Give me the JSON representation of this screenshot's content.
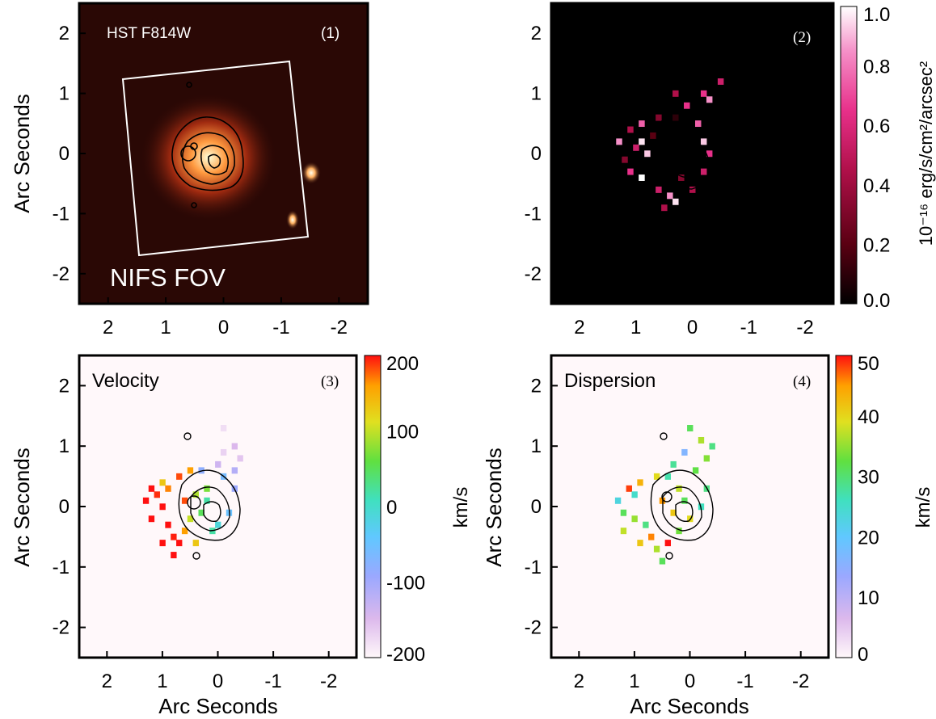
{
  "chart_data": [
    {
      "type": "heatmap",
      "panel_label": "(1)",
      "image_label": "HST F814W",
      "overlay_label": "NIFS FOV",
      "xlabel": "",
      "ylabel": "Arc Seconds",
      "xticks": [
        "2",
        "1",
        "0",
        "-1",
        "-2"
      ],
      "yticks": [
        "2",
        "1",
        "0",
        "-1",
        "-2"
      ],
      "xlim": [
        2.5,
        -2.5
      ],
      "ylim": [
        -2.5,
        2.5
      ],
      "colormap": "red-temperature",
      "background": "#2a0805",
      "sources": [
        {
          "x": -1.6,
          "y": 0.0
        },
        {
          "x": -1.25,
          "y": -1.05
        }
      ],
      "fov_box": [
        [
          1.75,
          1.35
        ],
        [
          -1.3,
          1.7
        ],
        [
          -1.55,
          -1.4
        ],
        [
          1.45,
          -1.65
        ]
      ]
    },
    {
      "type": "heatmap",
      "panel_label": "(2)",
      "xlabel": "",
      "ylabel": "",
      "xticks": [
        "2",
        "1",
        "0",
        "-1",
        "-2"
      ],
      "yticks": [
        "2",
        "1",
        "0",
        "-1",
        "-2"
      ],
      "xlim": [
        2.5,
        -2.5
      ],
      "ylim": [
        -2.5,
        2.5
      ],
      "colorbar": {
        "label": "10⁻¹⁶ erg/s/cm²/arcsec²",
        "ticks": [
          "0.0",
          "0.2",
          "0.4",
          "0.6",
          "0.8",
          "1.0"
        ],
        "range": [
          0.0,
          1.0
        ],
        "colors": [
          "#000000",
          "#5a0012",
          "#b0104a",
          "#e8308a",
          "#f590c8",
          "#ffffff"
        ]
      }
    },
    {
      "type": "heatmap",
      "panel_label": "(3)",
      "title": "Velocity",
      "xlabel": "Arc Seconds",
      "ylabel": "Arc Seconds",
      "xticks": [
        "2",
        "1",
        "0",
        "-1",
        "-2"
      ],
      "yticks": [
        "2",
        "1",
        "0",
        "-1",
        "-2"
      ],
      "xlim": [
        2.5,
        -2.5
      ],
      "ylim": [
        -2.5,
        2.5
      ],
      "colorbar": {
        "label": "km/s",
        "ticks": [
          "-200",
          "-100",
          "0",
          "100",
          "200"
        ],
        "range": [
          -200,
          200
        ],
        "colors": [
          "#fff8fa",
          "#dcb8ec",
          "#9aa8ff",
          "#60c8ff",
          "#40e0c0",
          "#60e040",
          "#e0e020",
          "#ffa000",
          "#ff1010"
        ]
      }
    },
    {
      "type": "heatmap",
      "panel_label": "(4)",
      "title": "Dispersion",
      "xlabel": "Arc Seconds",
      "ylabel": "Arc Seconds",
      "xticks": [
        "2",
        "1",
        "0",
        "-1",
        "-2"
      ],
      "yticks": [
        "2",
        "1",
        "0",
        "-1",
        "-2"
      ],
      "xlim": [
        2.5,
        -2.5
      ],
      "ylim": [
        -2.5,
        2.5
      ],
      "colorbar": {
        "label": "km/s",
        "ticks": [
          "0",
          "10",
          "20",
          "30",
          "40",
          "50"
        ],
        "range": [
          0,
          50
        ],
        "colors": [
          "#fff8fa",
          "#dcb8ec",
          "#9aa8ff",
          "#60c8ff",
          "#40e0c0",
          "#60e040",
          "#e0e020",
          "#ffa000",
          "#ff1010"
        ]
      }
    }
  ],
  "emission_map": {
    "pixel_size_arcsec": 0.1,
    "cells": [
      [
        -0.5,
        1.2,
        0.5
      ],
      [
        -0.2,
        1.0,
        0.6
      ],
      [
        -0.3,
        0.9,
        0.8
      ],
      [
        0.3,
        1.0,
        0.4
      ],
      [
        0.1,
        0.8,
        0.6
      ],
      [
        0.6,
        0.6,
        0.3
      ],
      [
        0.9,
        0.5,
        0.7
      ],
      [
        0.7,
        0.3,
        0.2
      ],
      [
        1.1,
        0.4,
        0.4
      ],
      [
        1.3,
        0.2,
        0.8
      ],
      [
        1.0,
        0.1,
        0.5
      ],
      [
        0.8,
        0.0,
        0.9
      ],
      [
        1.2,
        -0.1,
        0.3
      ],
      [
        1.1,
        -0.3,
        0.6
      ],
      [
        0.9,
        -0.4,
        1.0
      ],
      [
        0.6,
        -0.6,
        0.5
      ],
      [
        0.4,
        -0.7,
        0.8
      ],
      [
        0.2,
        -0.4,
        0.3
      ],
      [
        0.3,
        -0.8,
        0.95
      ],
      [
        0.5,
        -0.9,
        0.4
      ],
      [
        0.7,
        -0.3,
        0.0
      ],
      [
        0.5,
        0.5,
        0.0
      ],
      [
        0.3,
        0.6,
        0.1
      ],
      [
        -0.1,
        0.5,
        0.7
      ],
      [
        -0.2,
        0.2,
        0.9
      ],
      [
        -0.3,
        0.0,
        0.6
      ],
      [
        -0.2,
        -0.3,
        0.5
      ],
      [
        0.0,
        -0.6,
        0.4
      ],
      [
        1.3,
        0.0,
        0.0
      ],
      [
        0.9,
        0.2,
        0.95
      ]
    ]
  },
  "velocity_map": {
    "cells": [
      [
        -0.1,
        1.3,
        -180
      ],
      [
        -0.3,
        1.0,
        -150
      ],
      [
        -0.4,
        0.8,
        -160
      ],
      [
        -0.1,
        0.9,
        -170
      ],
      [
        -0.3,
        0.6,
        -120
      ],
      [
        0.0,
        0.7,
        -140
      ],
      [
        0.3,
        0.6,
        -90
      ],
      [
        0.5,
        0.6,
        150
      ],
      [
        0.7,
        0.5,
        180
      ],
      [
        1.0,
        0.4,
        120
      ],
      [
        1.2,
        0.3,
        200
      ],
      [
        1.3,
        0.1,
        200
      ],
      [
        1.1,
        0.2,
        190
      ],
      [
        0.9,
        0.3,
        160
      ],
      [
        1.0,
        0.0,
        200
      ],
      [
        1.2,
        -0.2,
        200
      ],
      [
        0.9,
        -0.3,
        200
      ],
      [
        0.8,
        -0.5,
        195
      ],
      [
        1.0,
        -0.6,
        200
      ],
      [
        0.8,
        -0.8,
        200
      ],
      [
        0.7,
        -0.6,
        200
      ],
      [
        0.6,
        -0.4,
        150
      ],
      [
        0.5,
        -0.2,
        90
      ],
      [
        0.3,
        -0.1,
        40
      ],
      [
        0.2,
        0.1,
        10
      ],
      [
        0.0,
        -0.3,
        -20
      ],
      [
        -0.2,
        -0.1,
        -60
      ],
      [
        0.2,
        0.3,
        60
      ],
      [
        0.4,
        0.2,
        80
      ],
      [
        -0.3,
        0.3,
        -100
      ],
      [
        -0.1,
        0.5,
        -70
      ],
      [
        0.6,
        0.1,
        180
      ],
      [
        0.4,
        -0.6,
        120
      ],
      [
        0.1,
        -0.4,
        10
      ]
    ]
  },
  "dispersion_map": {
    "cells": [
      [
        -0.2,
        1.1,
        35
      ],
      [
        0.0,
        1.3,
        30
      ],
      [
        -0.4,
        1.0,
        28
      ],
      [
        0.1,
        0.9,
        15
      ],
      [
        -0.3,
        0.8,
        33
      ],
      [
        0.3,
        0.7,
        27
      ],
      [
        0.6,
        0.5,
        38
      ],
      [
        0.9,
        0.4,
        42
      ],
      [
        1.1,
        0.3,
        48
      ],
      [
        1.3,
        0.1,
        22
      ],
      [
        1.2,
        -0.1,
        30
      ],
      [
        1.0,
        -0.2,
        34
      ],
      [
        0.8,
        -0.3,
        28
      ],
      [
        0.7,
        -0.5,
        45
      ],
      [
        0.9,
        -0.6,
        40
      ],
      [
        0.6,
        -0.7,
        35
      ],
      [
        0.4,
        -0.6,
        50
      ],
      [
        0.5,
        -0.9,
        30
      ],
      [
        0.2,
        -0.4,
        32
      ],
      [
        0.0,
        -0.2,
        38
      ],
      [
        -0.2,
        0.0,
        25
      ],
      [
        -0.3,
        0.3,
        28
      ],
      [
        0.2,
        0.3,
        36
      ],
      [
        0.5,
        0.1,
        44
      ],
      [
        0.3,
        -0.1,
        40
      ],
      [
        0.4,
        0.5,
        26
      ],
      [
        -0.1,
        0.6,
        31
      ],
      [
        1.0,
        0.2,
        24
      ],
      [
        1.2,
        -0.4,
        36
      ],
      [
        0.1,
        0.1,
        30
      ]
    ]
  }
}
